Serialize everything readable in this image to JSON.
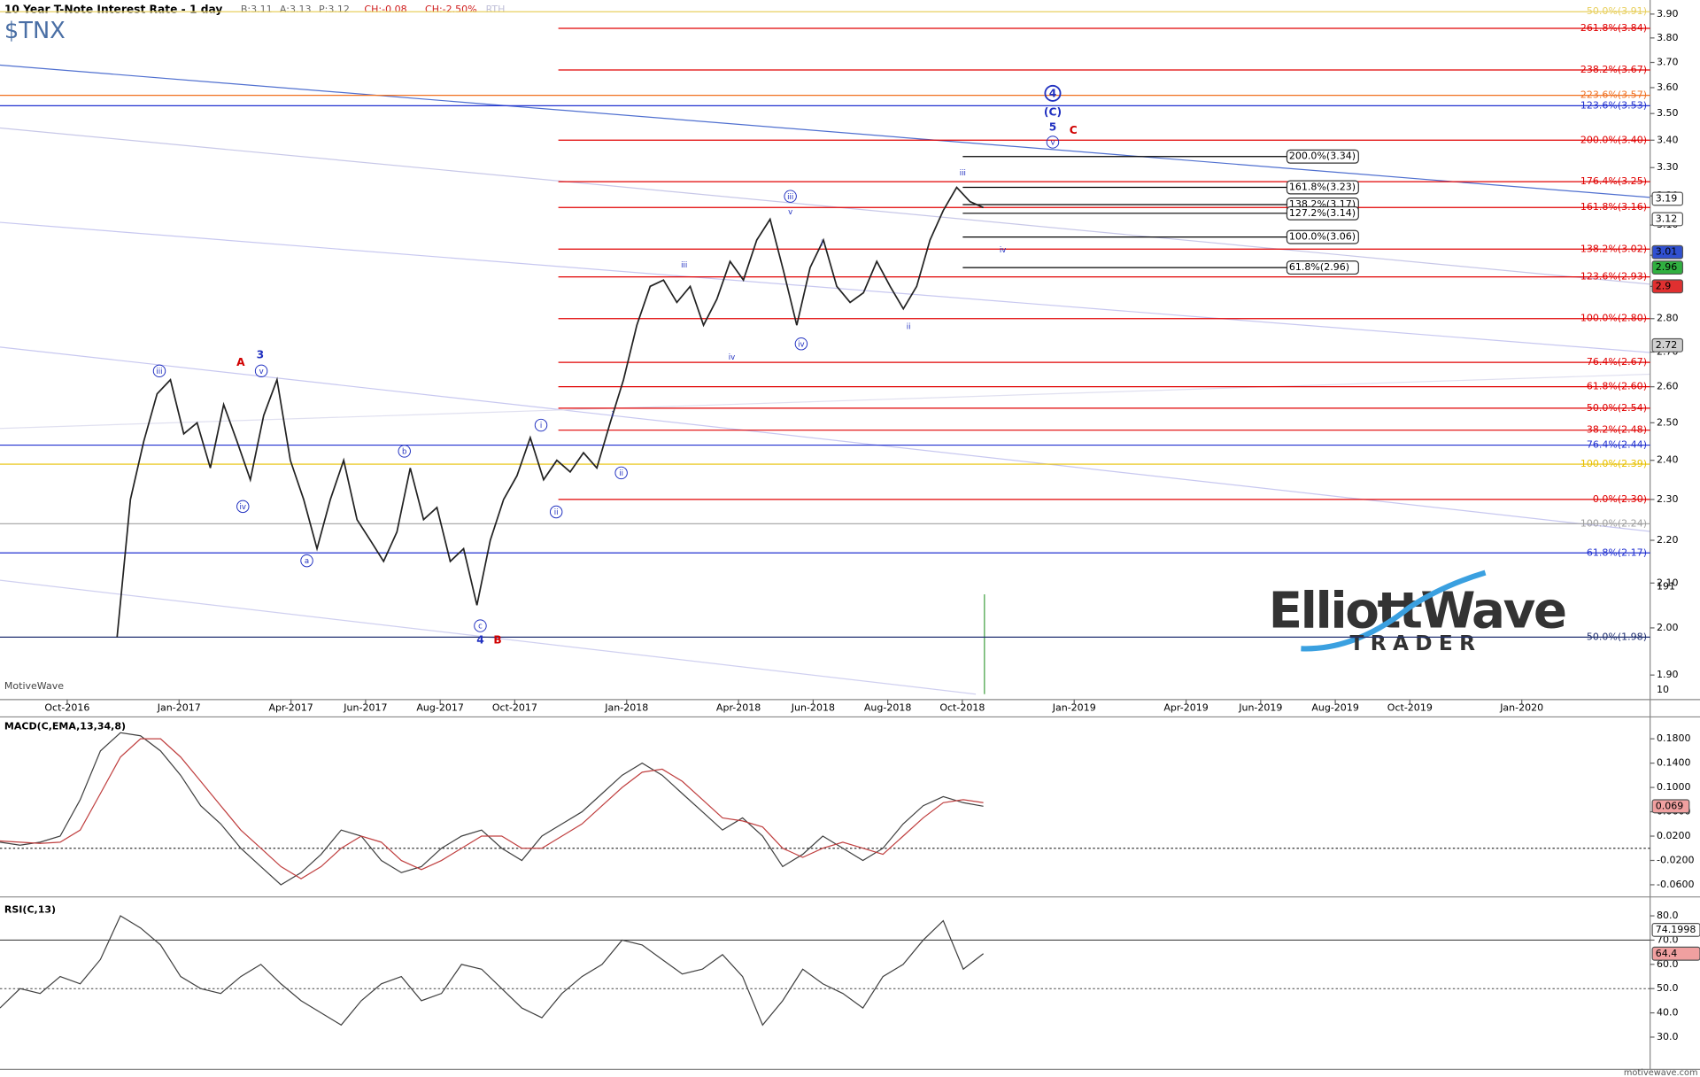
{
  "header": {
    "title": "10 Year T-Note Interest Rate - 1 day",
    "bid": "B:3.11",
    "ask": "A:3.13",
    "price": "P:3.12",
    "change": "CH:-0.08",
    "change_pct": "CH:-2.50%",
    "session": "RTH"
  },
  "chart_data": [
    {
      "type": "line",
      "title": "$TNX",
      "log_scale": true,
      "color": "#000000",
      "ylim": [
        1.85,
        3.96
      ],
      "yticks": [
        {
          "value": 3.9,
          "label": "3.90"
        },
        {
          "value": 3.8,
          "label": "3.80"
        },
        {
          "value": 3.7,
          "label": "3.70"
        },
        {
          "value": 3.6,
          "label": "3.60"
        },
        {
          "value": 3.5,
          "label": "3.50"
        },
        {
          "value": 3.4,
          "label": "3.40"
        },
        {
          "value": 3.3,
          "label": "3.30"
        },
        {
          "value": 3.2,
          "label": "3.20"
        },
        {
          "value": 3.1,
          "label": "3.10"
        },
        {
          "value": 3.0,
          "label": "3.00"
        },
        {
          "value": 2.9,
          "label": "2.90"
        },
        {
          "value": 2.8,
          "label": "2.80"
        },
        {
          "value": 2.7,
          "label": "2.70"
        },
        {
          "value": 2.6,
          "label": "2.60"
        },
        {
          "value": 2.5,
          "label": "2.50"
        },
        {
          "value": 2.4,
          "label": "2.40"
        },
        {
          "value": 2.3,
          "label": "2.30"
        },
        {
          "value": 2.2,
          "label": "2.20"
        },
        {
          "value": 2.1,
          "label": "2.10"
        },
        {
          "value": 2.0,
          "label": "2.00"
        },
        {
          "value": 1.9,
          "label": "1.90"
        }
      ],
      "xticks": [
        "Oct-2016",
        "Jan-2017",
        "Apr-2017",
        "Jun-2017",
        "Aug-2017",
        "Oct-2017",
        "Jan-2018",
        "Apr-2018",
        "Jun-2018",
        "Aug-2018",
        "Oct-2018",
        "Jan-2019",
        "Apr-2019",
        "Jun-2019",
        "Aug-2019",
        "Oct-2019",
        "Jan-2020"
      ],
      "series": [
        {
          "color": "#222222",
          "values": [
            1.98,
            2.3,
            2.45,
            2.58,
            2.62,
            2.47,
            2.5,
            2.38,
            2.55,
            2.45,
            2.35,
            2.52,
            2.62,
            2.4,
            2.3,
            2.18,
            2.3,
            2.4,
            2.25,
            2.2,
            2.15,
            2.22,
            2.38,
            2.25,
            2.28,
            2.15,
            2.18,
            2.05,
            2.2,
            2.3,
            2.36,
            2.46,
            2.35,
            2.4,
            2.37,
            2.42,
            2.38,
            2.5,
            2.62,
            2.78,
            2.9,
            2.92,
            2.85,
            2.9,
            2.78,
            2.86,
            2.98,
            2.92,
            3.05,
            3.12,
            2.95,
            2.78,
            2.96,
            3.05,
            2.9,
            2.85,
            2.88,
            2.98,
            2.9,
            2.83,
            2.9,
            3.05,
            3.15,
            3.23,
            3.18,
            3.16
          ]
        }
      ],
      "fib_levels": [
        {
          "label": "50.0%(3.91)",
          "value": 3.91,
          "color": "#e8d060"
        },
        {
          "label": "261.8%(3.84)",
          "value": 3.84,
          "color": "#e00000"
        },
        {
          "label": "238.2%(3.67)",
          "value": 3.67,
          "color": "#e00000"
        },
        {
          "label": "223.6%(3.57)",
          "value": 3.57,
          "color": "#f07020"
        },
        {
          "label": "123.6%(3.53)",
          "value": 3.53,
          "color": "#2030d0"
        },
        {
          "label": "200.0%(3.40)",
          "value": 3.4,
          "color": "#e00000"
        },
        {
          "label": "200.0%(3.34)",
          "value": 3.34,
          "color": "#000000",
          "boxed": true
        },
        {
          "label": "176.4%(3.25)",
          "value": 3.25,
          "color": "#e00000"
        },
        {
          "label": "161.8%(3.23)",
          "value": 3.23,
          "color": "#000000",
          "boxed": true
        },
        {
          "label": "138.2%(3.17)",
          "value": 3.17,
          "color": "#000000",
          "boxed": true
        },
        {
          "label": "161.8%(3.16)",
          "value": 3.16,
          "color": "#e00000"
        },
        {
          "label": "127.2%(3.14)",
          "value": 3.14,
          "color": "#000000",
          "boxed": true
        },
        {
          "label": "100.0%(3.06)",
          "value": 3.06,
          "color": "#000000",
          "boxed": true
        },
        {
          "label": "138.2%(3.02)",
          "value": 3.02,
          "color": "#e00000"
        },
        {
          "label": "61.8%(2.96)",
          "value": 2.96,
          "color": "#000000",
          "boxed": true
        },
        {
          "label": "123.6%(2.93)",
          "value": 2.93,
          "color": "#e00000"
        },
        {
          "label": "100.0%(2.80)",
          "value": 2.8,
          "color": "#e00000"
        },
        {
          "label": "76.4%(2.67)",
          "value": 2.67,
          "color": "#e00000"
        },
        {
          "label": "61.8%(2.60)",
          "value": 2.6,
          "color": "#e00000"
        },
        {
          "label": "50.0%(2.54)",
          "value": 2.54,
          "color": "#e00000"
        },
        {
          "label": "38.2%(2.48)",
          "value": 2.48,
          "color": "#e00000"
        },
        {
          "label": "76.4%(2.44)",
          "value": 2.44,
          "color": "#2030d0"
        },
        {
          "label": "100.0%(2.39)",
          "value": 2.39,
          "color": "#e8c000"
        },
        {
          "label": "0.0%(2.30)",
          "value": 2.3,
          "color": "#e00000"
        },
        {
          "label": "100.0%(2.24)",
          "value": 2.24,
          "color": "#a0a0a0"
        },
        {
          "label": "61.8%(2.17)",
          "value": 2.17,
          "color": "#2030d0"
        },
        {
          "label": "50.0%(1.98)",
          "value": 1.98,
          "color": "#203070"
        }
      ],
      "price_labels": [
        {
          "value": 3.19,
          "color": "#ffffff"
        },
        {
          "value": 3.12,
          "color": "#ffffff"
        },
        {
          "value": 3.01,
          "color": "#3050d0"
        },
        {
          "value": 2.96,
          "color": "#30b040"
        },
        {
          "value": 2.9,
          "color": "#e03030"
        },
        {
          "value": 2.72,
          "color": "#d0d0d0"
        }
      ],
      "volume_ticks": [
        191,
        10
      ],
      "wave_labels": [
        "iii",
        "A",
        "3",
        "v",
        "iv",
        "a",
        "b",
        "c",
        "4",
        "B",
        "i",
        "ii",
        "ii",
        "i",
        "iii",
        "iv",
        "iii",
        "v",
        "iv",
        "i",
        "ii",
        "iii",
        "iv",
        "4",
        "(C)",
        "5",
        "v",
        "C"
      ]
    },
    {
      "type": "line",
      "title": "MACD(C,EMA,13,34,8)",
      "ylim": [
        -0.08,
        0.216
      ],
      "yticks": [
        {
          "value": 0.18,
          "label": "0.1800"
        },
        {
          "value": 0.14,
          "label": "0.1400"
        },
        {
          "value": 0.1,
          "label": "0.1000"
        },
        {
          "value": 0.06,
          "label": "0.0600"
        },
        {
          "value": 0.02,
          "label": "0.0200"
        },
        {
          "value": -0.02,
          "label": "-0.0200"
        },
        {
          "value": -0.06,
          "label": "-0.0600"
        }
      ],
      "series": [
        {
          "color": "#404040",
          "values": [
            0.01,
            0.005,
            0.01,
            0.02,
            0.08,
            0.16,
            0.19,
            0.185,
            0.16,
            0.12,
            0.07,
            0.04,
            0.0,
            -0.03,
            -0.06,
            -0.04,
            -0.01,
            0.03,
            0.02,
            -0.02,
            -0.04,
            -0.03,
            0.0,
            0.02,
            0.03,
            0.0,
            -0.02,
            0.02,
            0.04,
            0.06,
            0.09,
            0.12,
            0.14,
            0.12,
            0.09,
            0.06,
            0.03,
            0.05,
            0.02,
            -0.03,
            -0.01,
            0.02,
            0.0,
            -0.02,
            0.0,
            0.04,
            0.07,
            0.085,
            0.075,
            0.069
          ]
        },
        {
          "color": "#c04040",
          "values": [
            0.012,
            0.01,
            0.008,
            0.01,
            0.03,
            0.09,
            0.15,
            0.18,
            0.18,
            0.15,
            0.11,
            0.07,
            0.03,
            0.0,
            -0.03,
            -0.05,
            -0.03,
            0.0,
            0.02,
            0.01,
            -0.02,
            -0.035,
            -0.02,
            0.0,
            0.02,
            0.02,
            0.0,
            0.0,
            0.02,
            0.04,
            0.07,
            0.1,
            0.125,
            0.13,
            0.11,
            0.08,
            0.05,
            0.045,
            0.035,
            0.0,
            -0.015,
            0.0,
            0.01,
            0.0,
            -0.01,
            0.02,
            0.05,
            0.075,
            0.08,
            0.075
          ]
        }
      ],
      "value_label": 0.069
    },
    {
      "type": "line",
      "title": "RSI(C,13)",
      "ylim": [
        16.7,
        87.8
      ],
      "yticks": [
        {
          "value": 80,
          "label": "80.0"
        },
        {
          "value": 70,
          "label": "70.0"
        },
        {
          "value": 60,
          "label": "60.0"
        },
        {
          "value": 50,
          "label": "50.0"
        },
        {
          "value": 40,
          "label": "40.0"
        },
        {
          "value": 30,
          "label": "30.0"
        }
      ],
      "series": [
        {
          "color": "#404040",
          "values": [
            42,
            50,
            48,
            55,
            52,
            62,
            80,
            75,
            68,
            55,
            50,
            48,
            55,
            60,
            52,
            45,
            40,
            35,
            45,
            52,
            55,
            45,
            48,
            60,
            58,
            50,
            42,
            38,
            48,
            55,
            60,
            70,
            68,
            62,
            56,
            58,
            64,
            55,
            35,
            45,
            58,
            52,
            48,
            42,
            55,
            60,
            70,
            78,
            58,
            64.4
          ]
        }
      ],
      "value_labels": [
        74.1998,
        64.4
      ]
    }
  ],
  "logo": {
    "brand": "ElliottWave",
    "sub": "TRADER"
  },
  "watermark": "MotiveWave",
  "footer": "motivewave.com"
}
